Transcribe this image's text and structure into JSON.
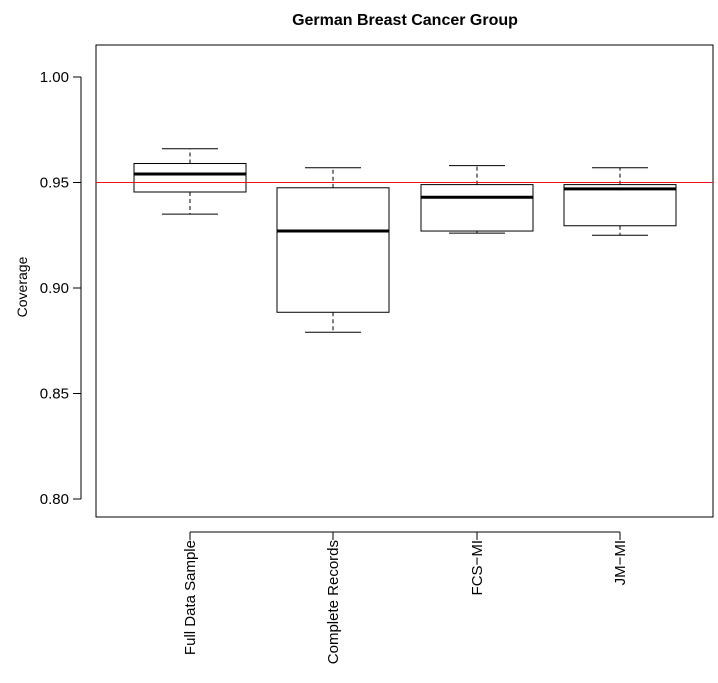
{
  "chart_data": {
    "type": "boxplot",
    "title": "German Breast Cancer Group",
    "xlabel": "",
    "ylabel": "Coverage",
    "ylim": [
      0.795,
      1.015
    ],
    "yticks": [
      0.8,
      0.85,
      0.9,
      0.95,
      1.0
    ],
    "ytick_labels": [
      "0.80",
      "0.85",
      "0.90",
      "0.95",
      "1.00"
    ],
    "categories": [
      "Full Data Sample",
      "Complete Records",
      "FCS−MI",
      "JM−MI"
    ],
    "boxes": [
      {
        "whisker_low": 0.935,
        "q1": 0.9455,
        "median": 0.954,
        "q3": 0.959,
        "whisker_high": 0.966
      },
      {
        "whisker_low": 0.879,
        "q1": 0.8885,
        "median": 0.927,
        "q3": 0.9475,
        "whisker_high": 0.957
      },
      {
        "whisker_low": 0.926,
        "q1": 0.927,
        "median": 0.943,
        "q3": 0.949,
        "whisker_high": 0.958
      },
      {
        "whisker_low": 0.925,
        "q1": 0.9295,
        "median": 0.947,
        "q3": 0.949,
        "whisker_high": 0.957
      }
    ],
    "reference_line": {
      "y": 0.95,
      "color": "#e8141c"
    },
    "colors": {
      "box_fill": "#ffffff",
      "stroke": "#000000"
    },
    "grid": false,
    "legend": "none"
  }
}
